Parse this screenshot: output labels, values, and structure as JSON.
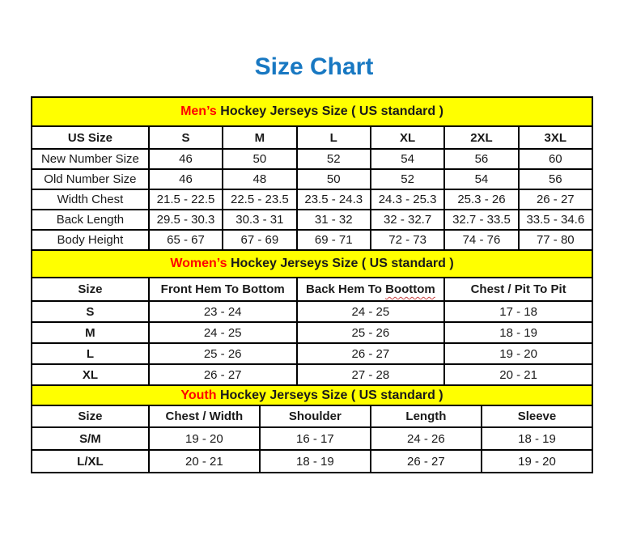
{
  "page": {
    "title": "Size Chart"
  },
  "colors": {
    "title_blue": "#1878C2",
    "band_yellow": "#FFFF00",
    "accent_red": "#FF0000",
    "border_black": "#000000",
    "spellcheck_red": "#C84040"
  },
  "sections": [
    {
      "id": "men",
      "band_accent": "Men’s",
      "band_rest": " Hockey Jerseys Size ( US standard )",
      "header": [
        "US Size",
        "S",
        "M",
        "L",
        "XL",
        "2XL",
        "3XL"
      ],
      "row_label_bold": false,
      "rows": [
        [
          "New Number Size",
          "46",
          "50",
          "52",
          "54",
          "56",
          "60"
        ],
        [
          "Old Number Size",
          "46",
          "48",
          "50",
          "52",
          "54",
          "56"
        ],
        [
          "Width Chest",
          "21.5 - 22.5",
          "22.5 - 23.5",
          "23.5 - 24.3",
          "24.3 - 25.3",
          "25.3 - 26",
          "26 - 27"
        ],
        [
          "Back Length",
          "29.5 - 30.3",
          "30.3 - 31",
          "31 - 32",
          "32 - 32.7",
          "32.7 - 33.5",
          "33.5 - 34.6"
        ],
        [
          "Body Height",
          "65 - 67",
          "67 - 69",
          "69 - 71",
          "72 - 73",
          "74 - 76",
          "77 - 80"
        ]
      ]
    },
    {
      "id": "women",
      "band_accent": "Women’s",
      "band_rest": " Hockey Jerseys Size ( US standard )",
      "header": [
        "Size",
        "Front Hem To Bottom",
        "Back Hem To Boottom",
        "Chest / Pit To Pit"
      ],
      "spell_error": {
        "col": 2,
        "word": "Boottom"
      },
      "row_label_bold": true,
      "rows": [
        [
          "S",
          "23 - 24",
          "24 - 25",
          "17 - 18"
        ],
        [
          "M",
          "24 - 25",
          "25 - 26",
          "18 - 19"
        ],
        [
          "L",
          "25 - 26",
          "26 - 27",
          "19 - 20"
        ],
        [
          "XL",
          "26 - 27",
          "27 - 28",
          "20 - 21"
        ]
      ]
    },
    {
      "id": "youth",
      "band_accent": "Youth",
      "band_rest": " Hockey Jerseys Size ( US standard )",
      "header": [
        "Size",
        "Chest / Width",
        "Shoulder",
        "Length",
        "Sleeve"
      ],
      "row_label_bold": true,
      "rows": [
        [
          "S/M",
          "19 - 20",
          "16 - 17",
          "24 - 26",
          "18 - 19"
        ],
        [
          "L/XL",
          "20 - 21",
          "18 - 19",
          "26 - 27",
          "19 - 20"
        ]
      ]
    }
  ]
}
